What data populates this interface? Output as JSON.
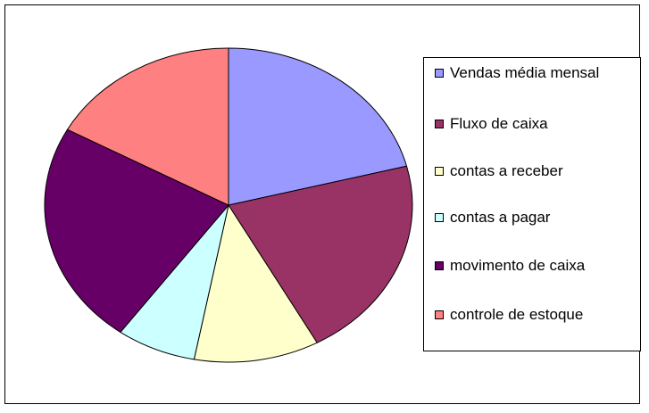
{
  "chart_data": {
    "type": "pie",
    "title": "",
    "slices": [
      {
        "label": "Vendas média mensal",
        "value": 21,
        "color": "#9999FF"
      },
      {
        "label": "Fluxo de caixa",
        "value": 21,
        "color": "#993366"
      },
      {
        "label": "contas a receber",
        "value": 11,
        "color": "#FFFFCC"
      },
      {
        "label": "contas a pagar",
        "value": 7,
        "color": "#CCFFFF"
      },
      {
        "label": "movimento de caixa",
        "value": 23,
        "color": "#660066"
      },
      {
        "label": "controle de estoque",
        "value": 17,
        "color": "#FF8080"
      }
    ],
    "start_angle_deg": 0,
    "direction": "clockwise",
    "legend_position": "right"
  }
}
